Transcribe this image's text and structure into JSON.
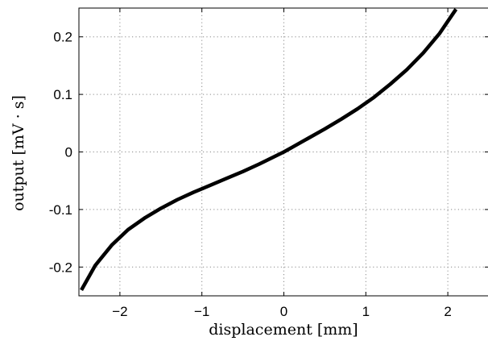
{
  "chart_data": {
    "type": "line",
    "title": "",
    "xlabel": "displacement [mm]",
    "ylabel": "output [mV · s]",
    "xlim": [
      -2.5,
      2.5
    ],
    "ylim": [
      -0.25,
      0.25
    ],
    "xticks": [
      -2,
      -1,
      0,
      1,
      2
    ],
    "xtick_labels": [
      "−2",
      "−1",
      "0",
      "1",
      "2"
    ],
    "yticks": [
      -0.2,
      -0.1,
      0,
      0.1,
      0.2
    ],
    "ytick_labels": [
      "-0.2",
      "-0.1",
      "0",
      "0.1",
      "0.2"
    ],
    "grid": true,
    "line_color": "#000000",
    "series": [
      {
        "x": [
          -2.47,
          -2.3,
          -2.1,
          -1.9,
          -1.7,
          -1.5,
          -1.3,
          -1.1,
          -0.9,
          -0.7,
          -0.5,
          -0.3,
          -0.1,
          0.0,
          0.1,
          0.3,
          0.5,
          0.7,
          0.9,
          1.1,
          1.3,
          1.5,
          1.7,
          1.9,
          2.1
        ],
        "y": [
          -0.24,
          -0.197,
          -0.162,
          -0.135,
          -0.115,
          -0.098,
          -0.083,
          -0.07,
          -0.058,
          -0.046,
          -0.034,
          -0.021,
          -0.007,
          0.0,
          0.008,
          0.024,
          0.04,
          0.057,
          0.075,
          0.095,
          0.118,
          0.143,
          0.172,
          0.206,
          0.248
        ]
      }
    ]
  }
}
